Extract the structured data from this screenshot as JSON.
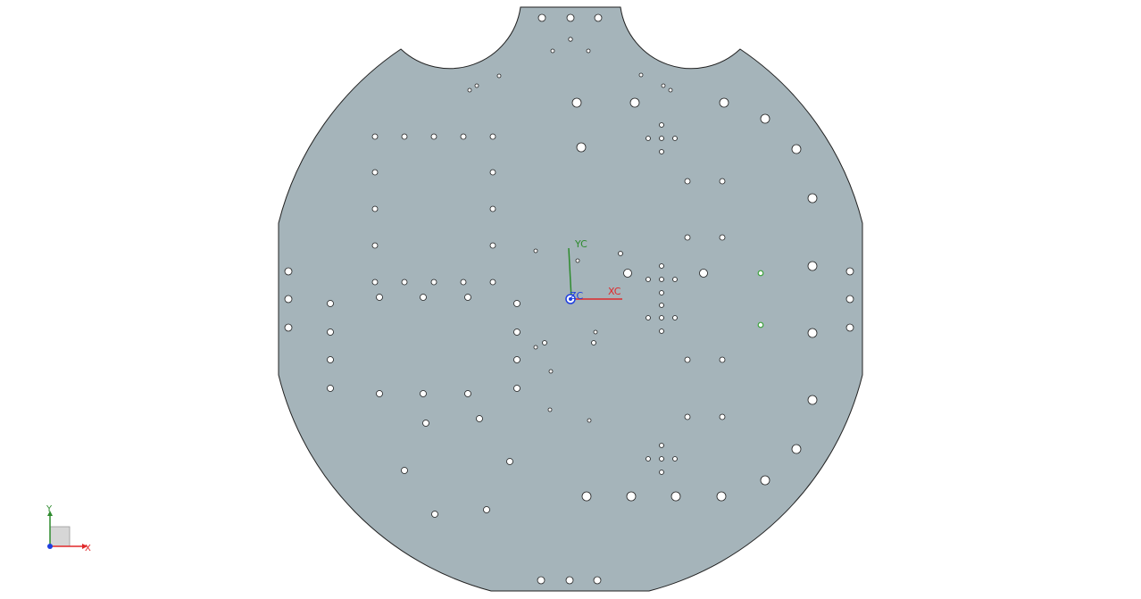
{
  "viewport": {
    "background_color": "#ffffff"
  },
  "part": {
    "plate_color": "#a5b4ba",
    "edge_color": "#222222",
    "hole_fill": "#ffffff"
  },
  "wcs": {
    "x_label": "XC",
    "y_label": "YC",
    "z_label": "ZC",
    "x_color": "#e0282a",
    "y_color": "#2e8b2e",
    "z_color": "#1f3fe0"
  },
  "view_triad": {
    "x_label": "X",
    "y_label": "Y",
    "x_color": "#e0282a",
    "y_color": "#2e8b2e",
    "z_color": "#1f3fe0",
    "box_color": "#d6d6d6"
  },
  "highlight_color": "#3ba33b"
}
